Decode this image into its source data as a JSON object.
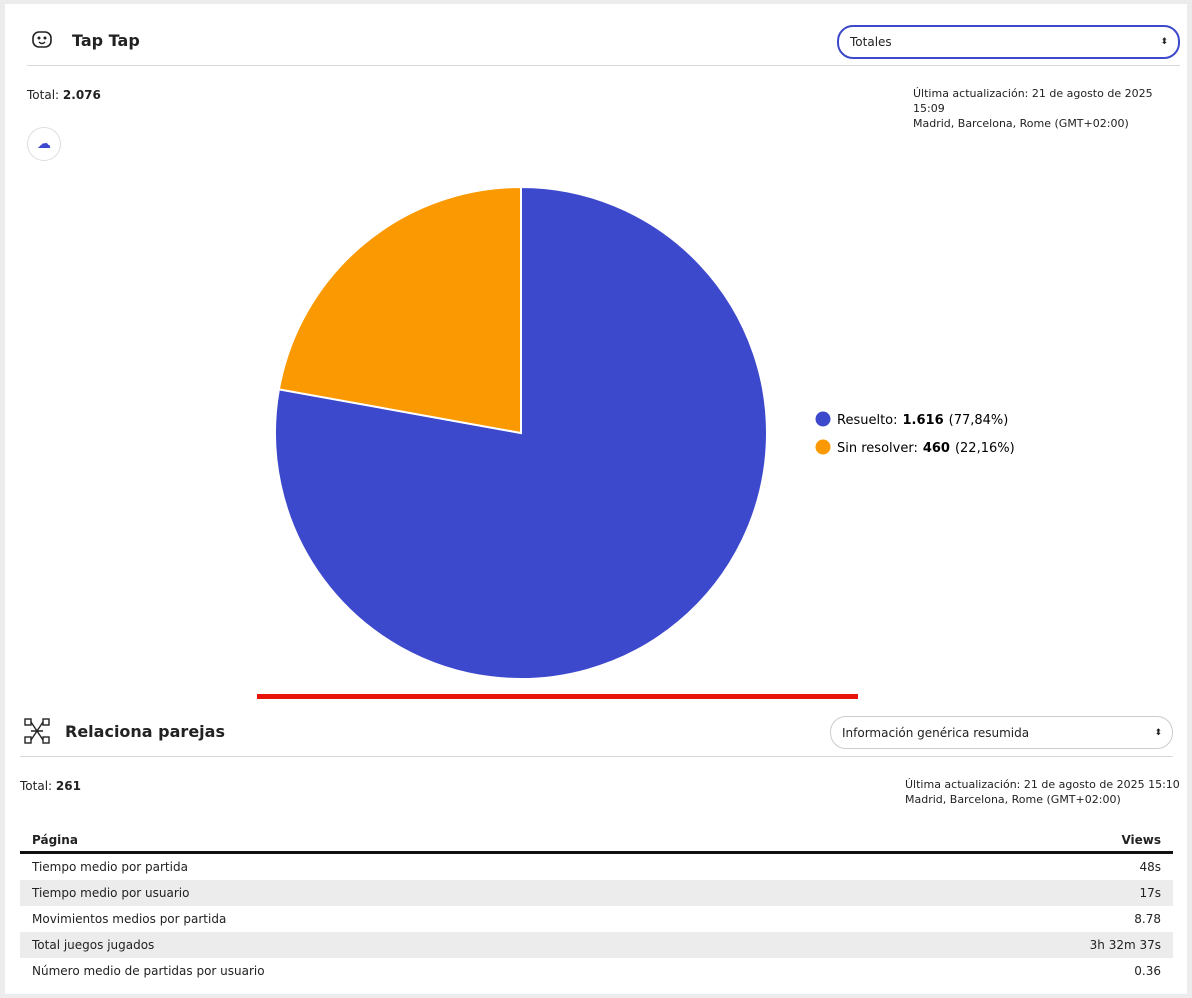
{
  "card1": {
    "title": "Tap Tap",
    "select": "Totales",
    "total_label": "Total:",
    "total_value": "2.076",
    "updated_line1": "Última actualización: 21 de agosto de 2025 15:09",
    "updated_line2": "Madrid, Barcelona, Rome (GMT+02:00)"
  },
  "chart_data": {
    "type": "pie",
    "categories": [
      "Resuelto:",
      "Sin resolver:"
    ],
    "values": [
      1616,
      460
    ],
    "value_labels": [
      "1.616",
      "460"
    ],
    "percent_labels": [
      "(77,84%)",
      "(22,16%)"
    ],
    "colors": [
      "#3d49cc",
      "#fb9902"
    ]
  },
  "card2": {
    "title": "Relaciona parejas",
    "select": "Información genérica resumida",
    "total_label": "Total:",
    "total_value": "261",
    "updated_line1": "Última actualización: 21 de agosto de 2025 15:10",
    "updated_line2": "Madrid, Barcelona, Rome (GMT+02:00)"
  },
  "table": {
    "headers": [
      "Página",
      "Views"
    ],
    "rows": [
      [
        "Tiempo medio por partida",
        "48s"
      ],
      [
        "Tiempo medio por usuario",
        "17s"
      ],
      [
        "Movimientos medios por partida",
        "8.78"
      ],
      [
        "Total juegos jugados",
        "3h 32m 37s"
      ],
      [
        "Número medio de partidas por usuario",
        "0.36"
      ]
    ]
  }
}
